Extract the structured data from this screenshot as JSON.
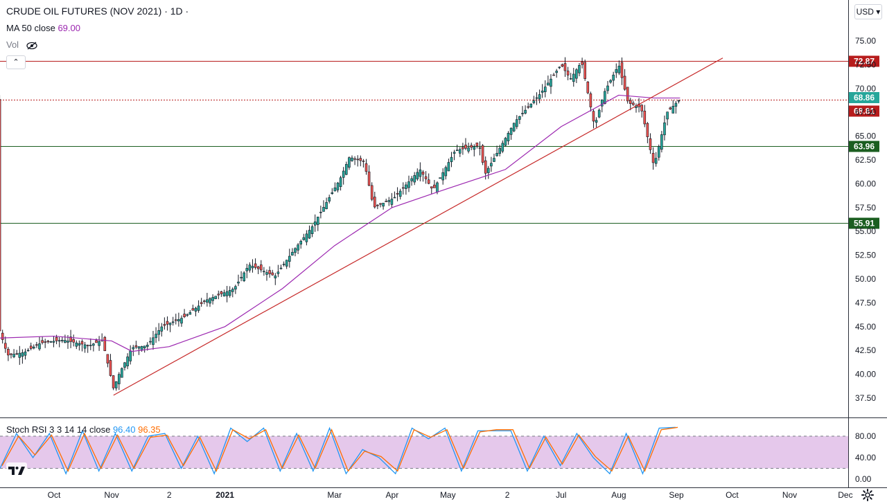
{
  "header": {
    "symbol_title": "CRUDE OIL FUTURES (NOV 2021) · 1D ·",
    "ma_label": "MA 50 close",
    "ma_value": "69.00",
    "vol_label": "Vol",
    "collapse_label": "⌃",
    "currency": "USD ▾"
  },
  "stoch": {
    "label": "Stoch RSI 3 3 14 14 close",
    "k_value": "96.40",
    "d_value": "96.35"
  },
  "colors": {
    "up": "#26a69a",
    "down": "#ef5350",
    "ma": "#9c27b0",
    "trend": "#c62828",
    "level_red": "#b71c1c",
    "level_green": "#1b5e20",
    "last_price": "#26a69a",
    "k_line": "#2196f3",
    "d_line": "#ff6d00",
    "band": "#e1bee7"
  },
  "chart_data": [
    {
      "type": "candlestick",
      "title": "CRUDE OIL FUTURES (NOV 2021) · 1D ·",
      "y_axis": {
        "ticks": [
          "75.00",
          "72.50",
          "70.00",
          "67.50",
          "65.00",
          "62.50",
          "60.00",
          "57.50",
          "55.00",
          "52.50",
          "50.00",
          "47.50",
          "45.00",
          "42.50",
          "40.00",
          "37.50"
        ]
      },
      "x_axis": {
        "ticks": [
          {
            "label": "Oct",
            "x": "2020-10-01"
          },
          {
            "label": "Nov",
            "x": "2020-11-01"
          },
          {
            "label": "2",
            "x": "2020-12-02"
          },
          {
            "label": "2021",
            "x": "2021-01-01"
          },
          {
            "label": "Mar",
            "x": "2021-03-01"
          },
          {
            "label": "Apr",
            "x": "2021-04-01"
          },
          {
            "label": "May",
            "x": "2021-05-01"
          },
          {
            "label": "2",
            "x": "2021-06-02"
          },
          {
            "label": "Jul",
            "x": "2021-07-01"
          },
          {
            "label": "Aug",
            "x": "2021-08-01"
          },
          {
            "label": "Sep",
            "x": "2021-09-01"
          },
          {
            "label": "Oct",
            "x": "2021-10-01"
          },
          {
            "label": "Nov",
            "x": "2021-11-01"
          },
          {
            "label": "Dec",
            "x": "2021-12-01"
          }
        ]
      },
      "price_path": [
        {
          "x": "2020-09-01",
          "y": 45.0
        },
        {
          "x": "2020-09-06",
          "y": 42.0
        },
        {
          "x": "2020-09-15",
          "y": 42.3
        },
        {
          "x": "2020-09-24",
          "y": 43.3
        },
        {
          "x": "2020-10-06",
          "y": 43.6
        },
        {
          "x": "2020-10-20",
          "y": 43.0
        },
        {
          "x": "2020-10-27",
          "y": 43.6
        },
        {
          "x": "2020-11-02",
          "y": 38.5
        },
        {
          "x": "2020-11-05",
          "y": 40.0
        },
        {
          "x": "2020-11-12",
          "y": 42.8
        },
        {
          "x": "2020-11-20",
          "y": 43.0
        },
        {
          "x": "2020-11-28",
          "y": 45.0
        },
        {
          "x": "2020-12-10",
          "y": 46.0
        },
        {
          "x": "2020-12-22",
          "y": 47.8
        },
        {
          "x": "2021-01-06",
          "y": 49.0
        },
        {
          "x": "2021-01-14",
          "y": 51.5
        },
        {
          "x": "2021-01-28",
          "y": 50.3
        },
        {
          "x": "2021-02-07",
          "y": 53.0
        },
        {
          "x": "2021-02-17",
          "y": 55.5
        },
        {
          "x": "2021-03-04",
          "y": 60.5
        },
        {
          "x": "2021-03-09",
          "y": 62.8
        },
        {
          "x": "2021-03-17",
          "y": 62.3
        },
        {
          "x": "2021-03-22",
          "y": 57.5
        },
        {
          "x": "2021-04-02",
          "y": 58.5
        },
        {
          "x": "2021-04-16",
          "y": 61.5
        },
        {
          "x": "2021-04-23",
          "y": 59.3
        },
        {
          "x": "2021-05-05",
          "y": 63.5
        },
        {
          "x": "2021-05-18",
          "y": 64.0
        },
        {
          "x": "2021-05-21",
          "y": 61.0
        },
        {
          "x": "2021-06-06",
          "y": 66.5
        },
        {
          "x": "2021-06-20",
          "y": 69.5
        },
        {
          "x": "2021-07-01",
          "y": 72.5
        },
        {
          "x": "2021-07-06",
          "y": 71.0
        },
        {
          "x": "2021-07-12",
          "y": 72.8
        },
        {
          "x": "2021-07-19",
          "y": 66.0
        },
        {
          "x": "2021-07-24",
          "y": 69.5
        },
        {
          "x": "2021-08-01",
          "y": 72.5
        },
        {
          "x": "2021-08-06",
          "y": 68.5
        },
        {
          "x": "2021-08-13",
          "y": 68.0
        },
        {
          "x": "2021-08-20",
          "y": 61.8
        },
        {
          "x": "2021-08-27",
          "y": 67.5
        },
        {
          "x": "2021-09-01",
          "y": 68.5
        },
        {
          "x": "2021-09-03",
          "y": 68.86
        }
      ],
      "ma50": [
        {
          "x": "2020-09-01",
          "y": 43.8
        },
        {
          "x": "2020-10-01",
          "y": 44.0
        },
        {
          "x": "2020-11-01",
          "y": 43.5
        },
        {
          "x": "2020-11-12",
          "y": 42.4
        },
        {
          "x": "2020-12-02",
          "y": 42.9
        },
        {
          "x": "2021-01-01",
          "y": 45.0
        },
        {
          "x": "2021-02-01",
          "y": 49.0
        },
        {
          "x": "2021-03-01",
          "y": 53.5
        },
        {
          "x": "2021-04-01",
          "y": 57.5
        },
        {
          "x": "2021-05-01",
          "y": 59.5
        },
        {
          "x": "2021-06-01",
          "y": 61.5
        },
        {
          "x": "2021-07-01",
          "y": 66.0
        },
        {
          "x": "2021-08-01",
          "y": 69.3
        },
        {
          "x": "2021-08-20",
          "y": 69.0
        },
        {
          "x": "2021-09-03",
          "y": 69.0
        }
      ],
      "trend_line": [
        {
          "x": "2020-11-02",
          "y": 37.8
        },
        {
          "x": "2021-09-26",
          "y": 73.2
        }
      ],
      "levels": [
        {
          "value": "72.87",
          "color": "red",
          "style": "solid"
        },
        {
          "value": "68.81",
          "color": "red",
          "style": "dotted"
        },
        {
          "value": "63.96",
          "color": "green",
          "style": "solid"
        },
        {
          "value": "55.91",
          "color": "green",
          "style": "solid"
        }
      ],
      "last_price": "68.86"
    },
    {
      "type": "line",
      "title": "Stoch RSI 3 3 14 14 close",
      "y_axis": {
        "ticks": [
          "80.00",
          "40.00",
          "0.00"
        ]
      },
      "bands": [
        80,
        20
      ],
      "series": [
        {
          "name": "K",
          "values": [
            20,
            85,
            40,
            85,
            10,
            90,
            15,
            85,
            15,
            80,
            85,
            20,
            80,
            10,
            95,
            70,
            95,
            15,
            85,
            15,
            95,
            10,
            55,
            40,
            10,
            95,
            75,
            95,
            15,
            90,
            90,
            90,
            15,
            80,
            25,
            85,
            40,
            10,
            85,
            10,
            95,
            96.4
          ]
        },
        {
          "name": "D",
          "values": [
            25,
            80,
            45,
            82,
            15,
            85,
            20,
            82,
            20,
            78,
            82,
            25,
            78,
            15,
            92,
            75,
            92,
            20,
            82,
            20,
            92,
            15,
            52,
            42,
            15,
            92,
            78,
            92,
            20,
            88,
            92,
            92,
            20,
            78,
            28,
            82,
            42,
            15,
            80,
            15,
            92,
            96.35
          ]
        }
      ]
    }
  ]
}
